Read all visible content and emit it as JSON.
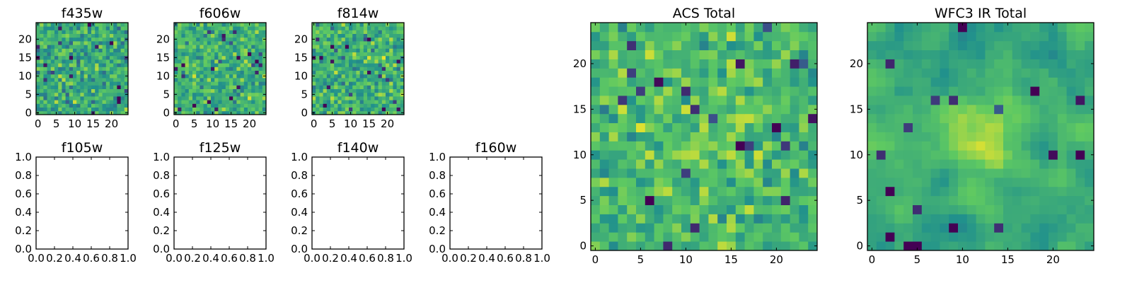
{
  "colormap": [
    "#440154",
    "#3b528b",
    "#21918c",
    "#5ec962",
    "#fde725"
  ],
  "chart_data": [
    {
      "id": "f435w",
      "type": "heatmap",
      "title": "f435w",
      "grid_size": 25,
      "xlim": [
        -0.5,
        24.5
      ],
      "ylim": [
        -0.5,
        24.5
      ],
      "xticks": [
        0,
        5,
        10,
        15,
        20
      ],
      "yticks": [
        0,
        5,
        10,
        15,
        20
      ],
      "xtick_labels": [
        "0",
        "5",
        "10",
        "15",
        "20"
      ],
      "ytick_labels": [
        "0",
        "5",
        "10",
        "15",
        "20"
      ],
      "palette_bias": 0.6,
      "spread": 0.24,
      "seed": 435,
      "smooth": 0,
      "peak": 0
    },
    {
      "id": "f606w",
      "type": "heatmap",
      "title": "f606w",
      "grid_size": 25,
      "xlim": [
        -0.5,
        24.5
      ],
      "ylim": [
        -0.5,
        24.5
      ],
      "xticks": [
        0,
        5,
        10,
        15,
        20
      ],
      "yticks": [
        0,
        5,
        10,
        15,
        20
      ],
      "xtick_labels": [
        "0",
        "5",
        "10",
        "15",
        "20"
      ],
      "ytick_labels": [
        "0",
        "5",
        "10",
        "15",
        "20"
      ],
      "palette_bias": 0.64,
      "spread": 0.22,
      "seed": 606,
      "smooth": 0,
      "peak": 0
    },
    {
      "id": "f814w",
      "type": "heatmap",
      "title": "f814w",
      "grid_size": 25,
      "xlim": [
        -0.5,
        24.5
      ],
      "ylim": [
        -0.5,
        24.5
      ],
      "xticks": [
        0,
        5,
        10,
        15,
        20
      ],
      "yticks": [
        0,
        5,
        10,
        15,
        20
      ],
      "xtick_labels": [
        "0",
        "5",
        "10",
        "15",
        "20"
      ],
      "ytick_labels": [
        "0",
        "5",
        "10",
        "15",
        "20"
      ],
      "palette_bias": 0.64,
      "spread": 0.24,
      "seed": 814,
      "smooth": 0,
      "peak": 0
    },
    {
      "id": "f105w",
      "type": "empty",
      "title": "f105w",
      "xlim": [
        0,
        1
      ],
      "ylim": [
        0,
        1
      ],
      "xticks": [
        0,
        0.2,
        0.4,
        0.6,
        0.8,
        1.0
      ],
      "yticks": [
        0,
        0.2,
        0.4,
        0.6,
        0.8,
        1.0
      ],
      "xtick_labels": [
        "0.0",
        "0.2",
        "0.4",
        "0.6",
        "0.8",
        "1.0"
      ],
      "ytick_labels": [
        "0.0",
        "0.2",
        "0.4",
        "0.6",
        "0.8",
        "1.0"
      ]
    },
    {
      "id": "f125w",
      "type": "empty",
      "title": "f125w",
      "xlim": [
        0,
        1
      ],
      "ylim": [
        0,
        1
      ],
      "xticks": [
        0,
        0.2,
        0.4,
        0.6,
        0.8,
        1.0
      ],
      "yticks": [
        0,
        0.2,
        0.4,
        0.6,
        0.8,
        1.0
      ],
      "xtick_labels": [
        "0.0",
        "0.2",
        "0.4",
        "0.6",
        "0.8",
        "1.0"
      ],
      "ytick_labels": [
        "0.0",
        "0.2",
        "0.4",
        "0.6",
        "0.8",
        "1.0"
      ]
    },
    {
      "id": "f140w",
      "type": "empty",
      "title": "f140w",
      "xlim": [
        0,
        1
      ],
      "ylim": [
        0,
        1
      ],
      "xticks": [
        0,
        0.2,
        0.4,
        0.6,
        0.8,
        1.0
      ],
      "yticks": [
        0,
        0.2,
        0.4,
        0.6,
        0.8,
        1.0
      ],
      "xtick_labels": [
        "0.0",
        "0.2",
        "0.4",
        "0.6",
        "0.8",
        "1.0"
      ],
      "ytick_labels": [
        "0.0",
        "0.2",
        "0.4",
        "0.6",
        "0.8",
        "1.0"
      ]
    },
    {
      "id": "f160w",
      "type": "empty",
      "title": "f160w",
      "xlim": [
        0,
        1
      ],
      "ylim": [
        0,
        1
      ],
      "xticks": [
        0,
        0.2,
        0.4,
        0.6,
        0.8,
        1.0
      ],
      "yticks": [
        0,
        0.2,
        0.4,
        0.6,
        0.8,
        1.0
      ],
      "xtick_labels": [
        "0.0",
        "0.2",
        "0.4",
        "0.6",
        "0.8",
        "1.0"
      ],
      "ytick_labels": [
        "0.0",
        "0.2",
        "0.4",
        "0.6",
        "0.8",
        "1.0"
      ]
    },
    {
      "id": "acs_total",
      "type": "heatmap",
      "title": "ACS Total",
      "grid_size": 25,
      "xlim": [
        -0.5,
        24.5
      ],
      "ylim": [
        -0.5,
        24.5
      ],
      "xticks": [
        0,
        5,
        10,
        15,
        20
      ],
      "yticks": [
        0,
        5,
        10,
        15,
        20
      ],
      "xtick_labels": [
        "0",
        "5",
        "10",
        "15",
        "20"
      ],
      "ytick_labels": [
        "0",
        "5",
        "10",
        "15",
        "20"
      ],
      "palette_bias": 0.67,
      "spread": 0.2,
      "seed": 1700,
      "smooth": 0,
      "peak": 0.08
    },
    {
      "id": "wfc3_ir_total",
      "type": "heatmap",
      "title": "WFC3 IR Total",
      "grid_size": 25,
      "xlim": [
        -0.5,
        24.5
      ],
      "ylim": [
        -0.5,
        24.5
      ],
      "xticks": [
        0,
        5,
        10,
        15,
        20
      ],
      "yticks": [
        0,
        5,
        10,
        15,
        20
      ],
      "xtick_labels": [
        "0",
        "5",
        "10",
        "15",
        "20"
      ],
      "ytick_labels": [
        "0",
        "5",
        "10",
        "15",
        "20"
      ],
      "palette_bias": 0.6,
      "spread": 0.16,
      "seed": 4200,
      "smooth": 1,
      "peak": 0.28
    }
  ]
}
